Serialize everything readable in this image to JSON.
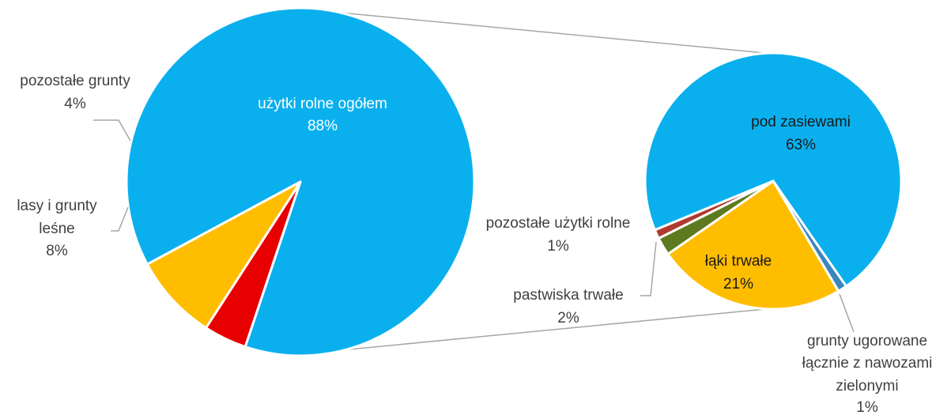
{
  "chart_data": [
    {
      "type": "pie",
      "title": "",
      "slices": [
        {
          "label_lines": [
            "użytki rolne ogółem"
          ],
          "value_label": "88%",
          "value": 88,
          "color": "#0AB0EE"
        },
        {
          "label_lines": [
            "pozostałe grunty"
          ],
          "value_label": "4%",
          "value": 4,
          "color": "#E80000"
        },
        {
          "label_lines": [
            "lasy i grunty",
            "leśne"
          ],
          "value_label": "8%",
          "value": 8,
          "color": "#FFBD00"
        }
      ]
    },
    {
      "type": "pie",
      "title": "",
      "slices": [
        {
          "label_lines": [
            "pod zasiewami"
          ],
          "value_label": "63%",
          "value": 63,
          "color": "#0AB0EE"
        },
        {
          "label_lines": [
            "grunty ugorowane",
            "łącznie z nawozami",
            "zielonymi"
          ],
          "value_label": "1%",
          "value": 1,
          "color": "#3C86C0"
        },
        {
          "label_lines": [
            "łąki trwałe"
          ],
          "value_label": "21%",
          "value": 21,
          "color": "#FFBD00"
        },
        {
          "label_lines": [
            "pastwiska trwałe"
          ],
          "value_label": "2%",
          "value": 2,
          "color": "#5E7A1E"
        },
        {
          "label_lines": [
            "pozostałe użytki rolne"
          ],
          "value_label": "1%",
          "value": 1,
          "color": "#B03A2E"
        }
      ]
    }
  ]
}
